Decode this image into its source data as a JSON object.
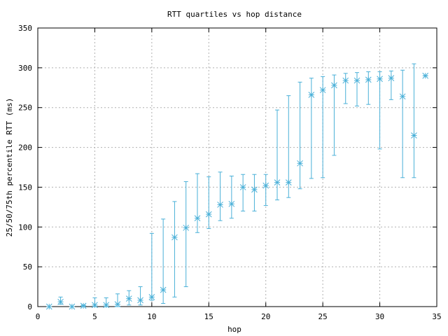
{
  "chart_data": {
    "type": "scatter",
    "title": "RTT quartiles vs hop distance",
    "xlabel": "hop",
    "ylabel": "25/50/75th percentile RTT (ms)",
    "xlim": [
      0,
      35
    ],
    "ylim": [
      0,
      350
    ],
    "x_ticks": [
      0,
      5,
      10,
      15,
      20,
      25,
      30,
      35
    ],
    "y_ticks": [
      0,
      50,
      100,
      150,
      200,
      250,
      300,
      350
    ],
    "grid": true,
    "legend": "none",
    "marker": "asterisk",
    "color": "#4ab0d8",
    "series": [
      {
        "points": [
          {
            "x": 1,
            "q25": 0,
            "q50": 0,
            "q75": 0
          },
          {
            "x": 2,
            "q25": 3,
            "q50": 6,
            "q75": 12
          },
          {
            "x": 3,
            "q25": 0,
            "q50": 0,
            "q75": 0
          },
          {
            "x": 4,
            "q25": 0,
            "q50": 1,
            "q75": 2
          },
          {
            "x": 5,
            "q25": 0,
            "q50": 2,
            "q75": 11
          },
          {
            "x": 6,
            "q25": 0,
            "q50": 2,
            "q75": 11
          },
          {
            "x": 7,
            "q25": 0,
            "q50": 3,
            "q75": 16
          },
          {
            "x": 8,
            "q25": 2,
            "q50": 10,
            "q75": 20
          },
          {
            "x": 9,
            "q25": 2,
            "q50": 8,
            "q75": 25
          },
          {
            "x": 10,
            "q25": 8,
            "q50": 12,
            "q75": 92
          },
          {
            "x": 11,
            "q25": 4,
            "q50": 21,
            "q75": 110
          },
          {
            "x": 12,
            "q25": 12,
            "q50": 87,
            "q75": 132
          },
          {
            "x": 13,
            "q25": 25,
            "q50": 99,
            "q75": 157
          },
          {
            "x": 14,
            "q25": 93,
            "q50": 111,
            "q75": 167
          },
          {
            "x": 15,
            "q25": 98,
            "q50": 116,
            "q75": 163
          },
          {
            "x": 16,
            "q25": 108,
            "q50": 128,
            "q75": 169
          },
          {
            "x": 17,
            "q25": 111,
            "q50": 129,
            "q75": 164
          },
          {
            "x": 18,
            "q25": 120,
            "q50": 150,
            "q75": 166
          },
          {
            "x": 19,
            "q25": 120,
            "q50": 147,
            "q75": 166
          },
          {
            "x": 20,
            "q25": 127,
            "q50": 152,
            "q75": 166
          },
          {
            "x": 21,
            "q25": 134,
            "q50": 156,
            "q75": 247
          },
          {
            "x": 22,
            "q25": 137,
            "q50": 156,
            "q75": 265
          },
          {
            "x": 23,
            "q25": 148,
            "q50": 180,
            "q75": 282
          },
          {
            "x": 24,
            "q25": 161,
            "q50": 266,
            "q75": 287
          },
          {
            "x": 25,
            "q25": 162,
            "q50": 272,
            "q75": 289
          },
          {
            "x": 26,
            "q25": 190,
            "q50": 278,
            "q75": 291
          },
          {
            "x": 27,
            "q25": 255,
            "q50": 284,
            "q75": 293
          },
          {
            "x": 28,
            "q25": 252,
            "q50": 284,
            "q75": 294
          },
          {
            "x": 29,
            "q25": 254,
            "q50": 285,
            "q75": 295
          },
          {
            "x": 30,
            "q25": 198,
            "q50": 286,
            "q75": 295
          },
          {
            "x": 31,
            "q25": 260,
            "q50": 287,
            "q75": 296
          },
          {
            "x": 32,
            "q25": 162,
            "q50": 264,
            "q75": 297
          },
          {
            "x": 33,
            "q25": 162,
            "q50": 215,
            "q75": 305
          },
          {
            "x": 34,
            "q25": 290,
            "q50": 290,
            "q75": 290
          }
        ]
      }
    ]
  }
}
